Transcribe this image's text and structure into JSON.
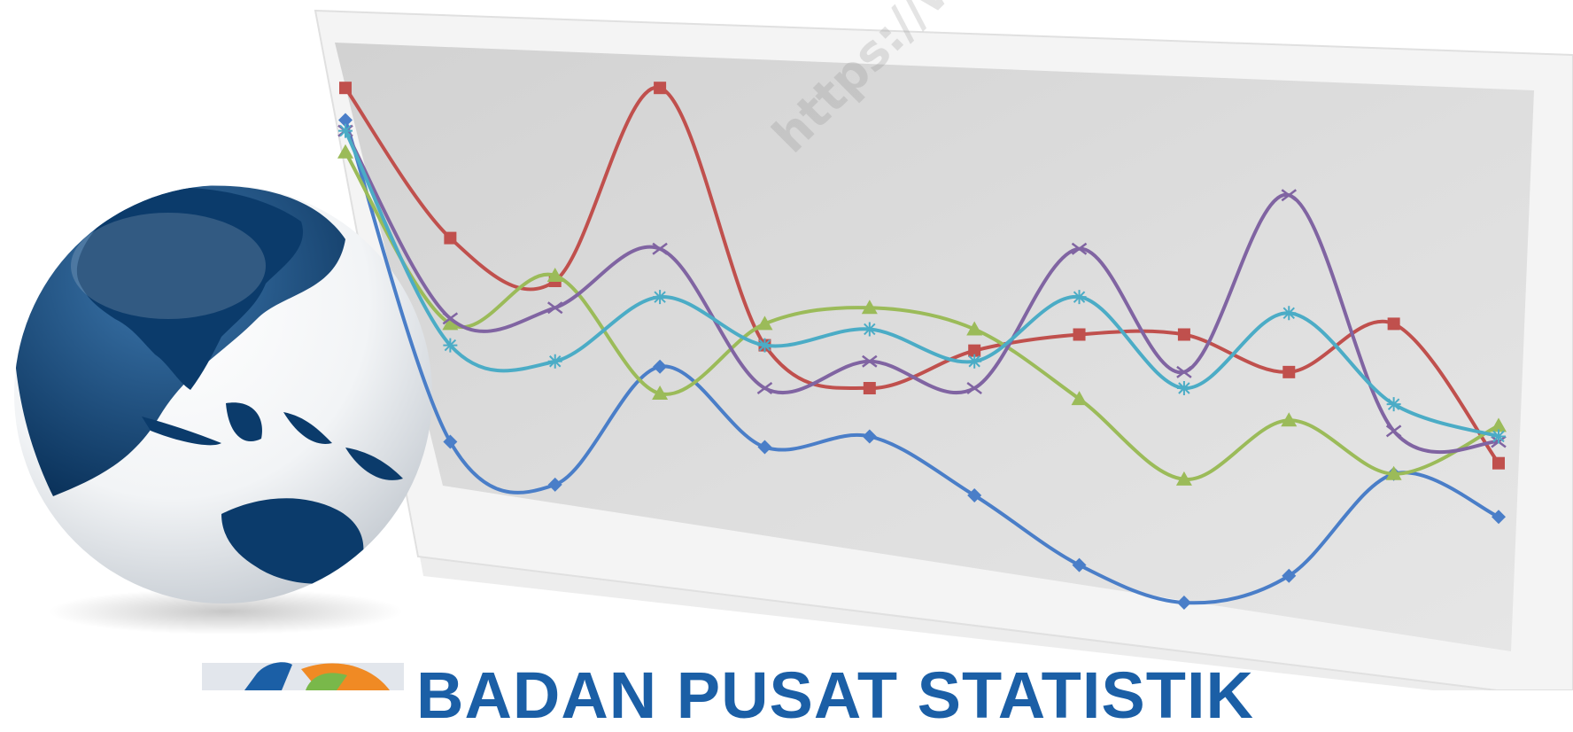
{
  "watermark": {
    "text": "https://www.b"
  },
  "brand": {
    "text": "BADAN PUSAT STATISTIK",
    "color": "#1b5fa6"
  },
  "globe": {
    "ocean": "#0b3b6b",
    "land": "#ffffff"
  },
  "chart_data": {
    "type": "line",
    "smooth": true,
    "grid": false,
    "legend": "none",
    "title": "",
    "xlabel": "",
    "ylabel": "",
    "x": [
      1,
      2,
      3,
      4,
      5,
      6,
      7,
      8,
      9,
      10,
      11,
      12
    ],
    "ylim": [
      0,
      100
    ],
    "series": [
      {
        "color": "#4a7ec8",
        "marker": "diamond",
        "values": [
          90,
          30,
          22,
          44,
          29,
          31,
          20,
          7,
          0,
          5,
          24,
          16
        ]
      },
      {
        "color": "#c0504d",
        "marker": "square",
        "values": [
          96,
          68,
          60,
          96,
          48,
          40,
          47,
          50,
          50,
          43,
          52,
          26
        ]
      },
      {
        "color": "#9bbb59",
        "marker": "triangle",
        "values": [
          84,
          52,
          61,
          39,
          52,
          55,
          51,
          38,
          23,
          34,
          24,
          33
        ]
      },
      {
        "color": "#8064a2",
        "marker": "x",
        "values": [
          88,
          53,
          55,
          66,
          40,
          45,
          40,
          66,
          43,
          76,
          32,
          30
        ]
      },
      {
        "color": "#4bacc6",
        "marker": "star",
        "values": [
          88,
          48,
          45,
          57,
          48,
          51,
          45,
          57,
          40,
          54,
          37,
          31
        ]
      }
    ]
  }
}
